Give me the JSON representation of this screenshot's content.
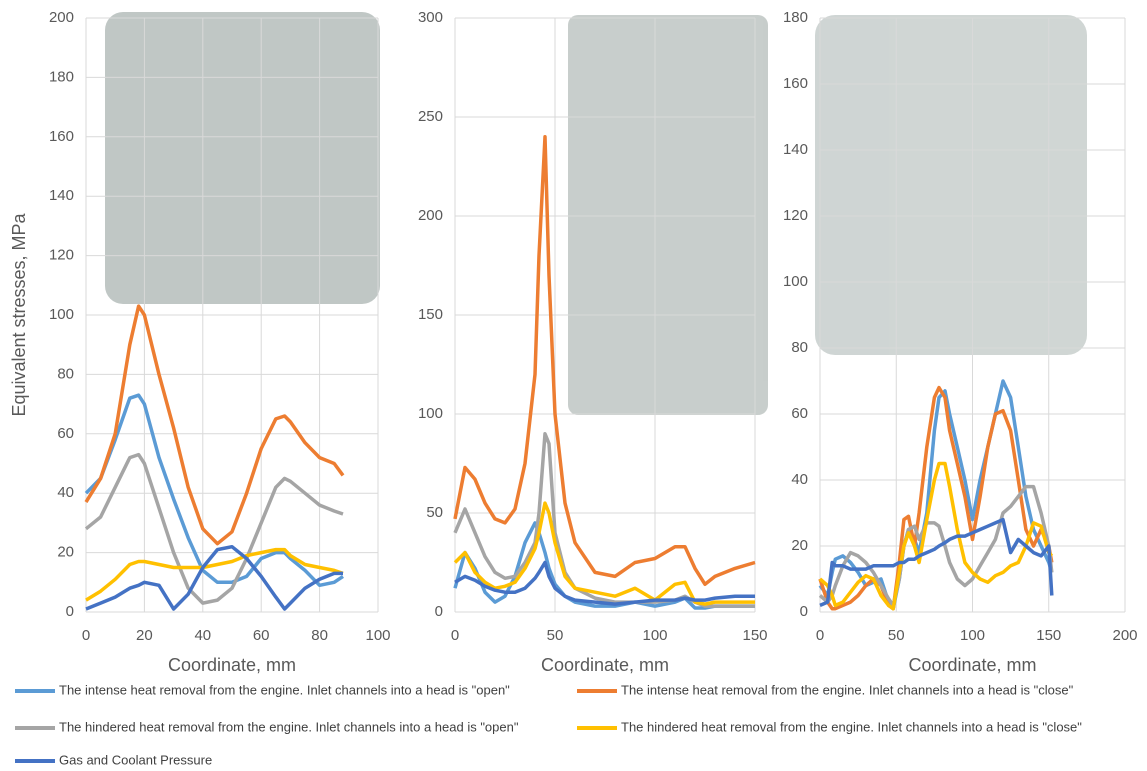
{
  "chart_data": [
    {
      "type": "line",
      "y_label": "Equivalent stresses, MPa",
      "x_label": "Coordinate, mm",
      "xlim": [
        0,
        100
      ],
      "xticks": [
        0,
        20,
        40,
        60,
        80,
        100
      ],
      "ylim": [
        0,
        200
      ],
      "yticks": [
        0,
        20,
        40,
        60,
        80,
        100,
        120,
        140,
        160,
        180,
        200
      ],
      "grid": true,
      "x": [
        0,
        5,
        10,
        15,
        18,
        20,
        25,
        30,
        35,
        40,
        45,
        50,
        55,
        60,
        65,
        68,
        70,
        75,
        80,
        85,
        88
      ],
      "series": [
        {
          "name": "The intense heat removal from the engine. Inlet channels into a head is \"open\"",
          "color": "#5b9bd5",
          "values": [
            40,
            45,
            58,
            72,
            73,
            70,
            52,
            38,
            25,
            14,
            10,
            10,
            12,
            18,
            20,
            20,
            18,
            14,
            9,
            10,
            12
          ]
        },
        {
          "name": "The intense heat removal from the engine. Inlet channels into a head is \"close\"",
          "color": "#ed7d31",
          "values": [
            37,
            45,
            60,
            90,
            103,
            100,
            80,
            62,
            42,
            28,
            23,
            27,
            40,
            55,
            65,
            66,
            64,
            57,
            52,
            50,
            46
          ]
        },
        {
          "name": "The hindered heat removal from the engine. Inlet channels into a head is \"open\"",
          "color": "#a5a5a5",
          "values": [
            28,
            32,
            42,
            52,
            53,
            50,
            35,
            20,
            8,
            3,
            4,
            8,
            18,
            30,
            42,
            45,
            44,
            40,
            36,
            34,
            33
          ]
        },
        {
          "name": "The hindered heat removal from the engine. Inlet channels into a head is \"close\"",
          "color": "#ffc000",
          "values": [
            4,
            7,
            11,
            16,
            17,
            17,
            16,
            15,
            15,
            15,
            16,
            17,
            19,
            20,
            21,
            21,
            19,
            16,
            15,
            14,
            13
          ]
        },
        {
          "name": "Gas and Coolant Pressure",
          "color": "#4472c4",
          "values": [
            1,
            3,
            5,
            8,
            9,
            10,
            9,
            1,
            6,
            15,
            21,
            22,
            18,
            12,
            5,
            1,
            3,
            8,
            11,
            13,
            13
          ]
        }
      ]
    },
    {
      "type": "line",
      "x_label": "Coordinate, mm",
      "xlim": [
        0,
        150
      ],
      "xticks": [
        0,
        50,
        100,
        150
      ],
      "ylim": [
        0,
        300
      ],
      "yticks": [
        0,
        50,
        100,
        150,
        200,
        250,
        300
      ],
      "grid": true,
      "x": [
        0,
        5,
        10,
        15,
        20,
        25,
        30,
        35,
        40,
        42,
        45,
        47,
        50,
        55,
        60,
        70,
        80,
        90,
        100,
        110,
        115,
        120,
        125,
        130,
        140,
        150
      ],
      "series": [
        {
          "color": "#5b9bd5",
          "values": [
            12,
            30,
            22,
            10,
            5,
            8,
            18,
            35,
            45,
            40,
            30,
            22,
            14,
            8,
            5,
            3,
            3,
            5,
            3,
            5,
            7,
            2,
            2,
            3,
            3,
            3
          ]
        },
        {
          "color": "#ed7d31",
          "values": [
            47,
            73,
            67,
            55,
            47,
            45,
            52,
            75,
            120,
            180,
            240,
            170,
            100,
            55,
            35,
            20,
            18,
            25,
            27,
            33,
            33,
            22,
            14,
            18,
            22,
            25
          ]
        },
        {
          "color": "#a5a5a5",
          "values": [
            40,
            52,
            40,
            28,
            20,
            17,
            18,
            25,
            35,
            50,
            90,
            85,
            40,
            20,
            12,
            7,
            5,
            5,
            5,
            6,
            8,
            5,
            3,
            3,
            3,
            3
          ]
        },
        {
          "color": "#ffc000",
          "values": [
            25,
            30,
            20,
            15,
            12,
            13,
            15,
            22,
            32,
            40,
            55,
            50,
            35,
            18,
            12,
            10,
            8,
            12,
            6,
            14,
            15,
            5,
            4,
            5,
            5,
            5
          ]
        },
        {
          "color": "#4472c4",
          "values": [
            15,
            18,
            16,
            13,
            11,
            10,
            10,
            12,
            17,
            20,
            25,
            18,
            12,
            8,
            6,
            5,
            4,
            5,
            6,
            6,
            7,
            6,
            6,
            7,
            8,
            8
          ]
        }
      ]
    },
    {
      "type": "line",
      "x_label": "Coordinate, mm",
      "xlim": [
        0,
        200
      ],
      "xticks": [
        0,
        50,
        100,
        150,
        200
      ],
      "ylim": [
        0,
        180
      ],
      "yticks": [
        0,
        20,
        40,
        60,
        80,
        100,
        120,
        140,
        160,
        180
      ],
      "grid": true,
      "x": [
        0,
        5,
        8,
        10,
        15,
        20,
        25,
        30,
        35,
        40,
        45,
        48,
        52,
        55,
        58,
        62,
        65,
        70,
        75,
        78,
        82,
        85,
        90,
        95,
        100,
        105,
        110,
        115,
        120,
        125,
        130,
        135,
        140,
        145,
        150,
        152
      ],
      "series": [
        {
          "color": "#5b9bd5",
          "values": [
            8,
            5,
            12,
            16,
            17,
            15,
            12,
            8,
            9,
            10,
            3,
            1,
            10,
            20,
            25,
            22,
            18,
            30,
            55,
            65,
            67,
            60,
            50,
            40,
            28,
            40,
            50,
            60,
            70,
            65,
            50,
            35,
            25,
            20,
            15,
            12
          ]
        },
        {
          "color": "#ed7d31",
          "values": [
            10,
            3,
            1,
            1,
            2,
            3,
            5,
            8,
            10,
            8,
            2,
            1,
            15,
            28,
            29,
            20,
            30,
            50,
            65,
            68,
            65,
            55,
            45,
            35,
            22,
            35,
            50,
            60,
            61,
            55,
            40,
            25,
            20,
            25,
            20,
            15
          ]
        },
        {
          "color": "#a5a5a5",
          "values": [
            5,
            3,
            5,
            8,
            14,
            18,
            17,
            15,
            12,
            8,
            4,
            2,
            10,
            20,
            25,
            26,
            22,
            27,
            27,
            26,
            20,
            15,
            10,
            8,
            10,
            14,
            18,
            22,
            30,
            32,
            35,
            38,
            38,
            30,
            20,
            12
          ]
        },
        {
          "color": "#ffc000",
          "values": [
            10,
            8,
            5,
            2,
            3,
            6,
            9,
            11,
            10,
            5,
            2,
            1,
            12,
            20,
            24,
            20,
            15,
            28,
            40,
            45,
            45,
            38,
            25,
            15,
            12,
            10,
            9,
            11,
            12,
            14,
            15,
            20,
            27,
            26,
            18,
            17
          ]
        },
        {
          "color": "#4472c4",
          "values": [
            2,
            3,
            15,
            14,
            14,
            13,
            13,
            13,
            14,
            14,
            14,
            14,
            15,
            15,
            16,
            16,
            17,
            18,
            19,
            20,
            21,
            22,
            23,
            23,
            24,
            25,
            26,
            27,
            28,
            18,
            22,
            20,
            18,
            17,
            20,
            5
          ]
        }
      ]
    }
  ]
}
